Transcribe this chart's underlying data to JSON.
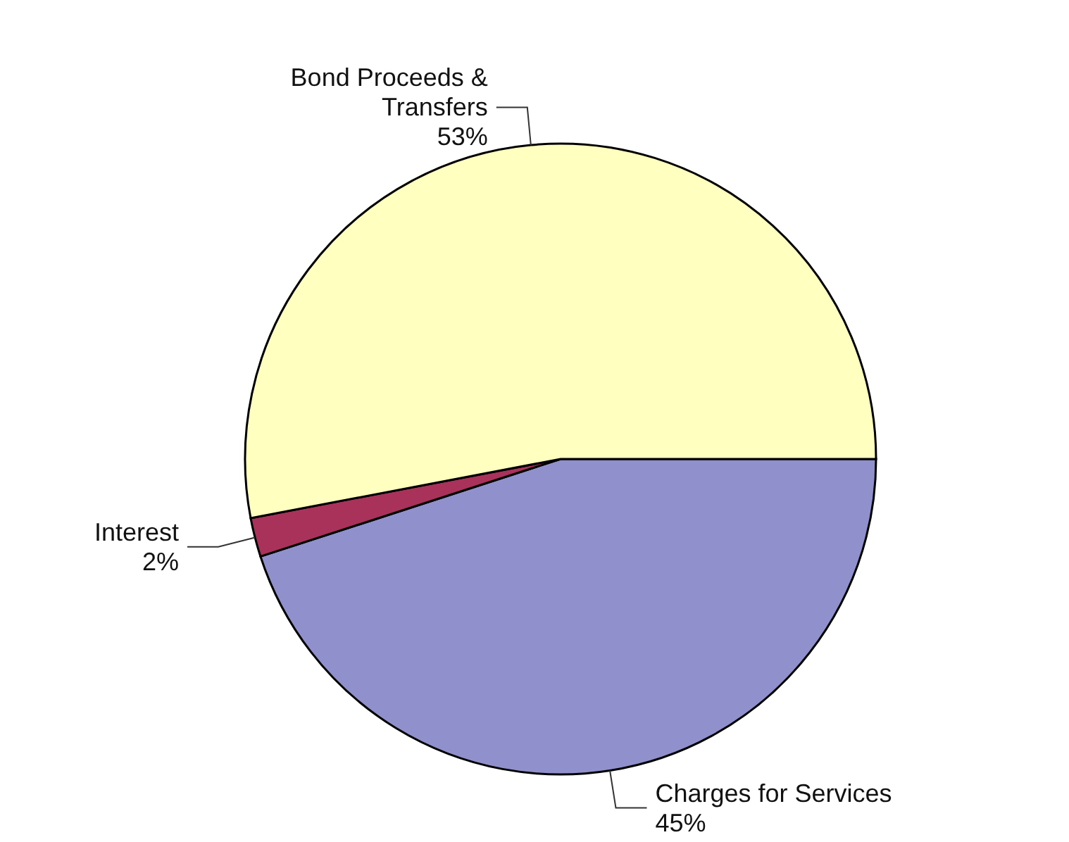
{
  "chart_data": {
    "type": "pie",
    "categories": [
      "Charges for Services",
      "Interest",
      "Bond Proceeds & Transfers"
    ],
    "values": [
      45,
      2,
      53
    ],
    "colors": [
      "#9090cc",
      "#a8325a",
      "#ffffc0"
    ],
    "value_labels": [
      "45%",
      "2%",
      "53%"
    ]
  }
}
